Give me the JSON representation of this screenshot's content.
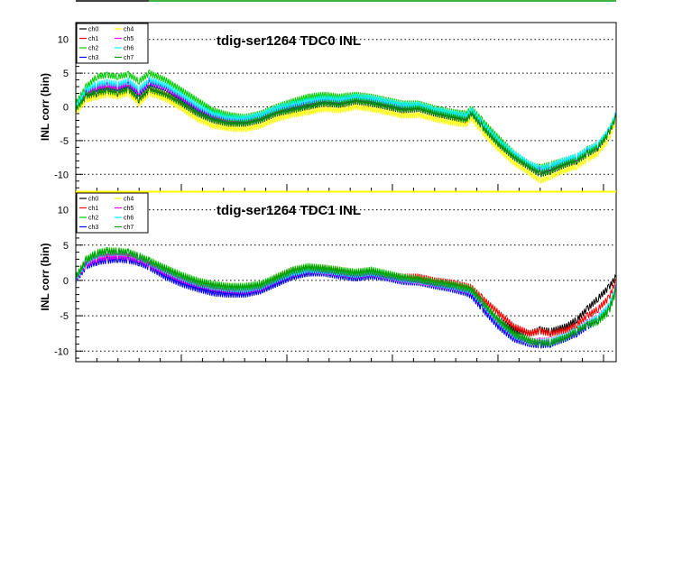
{
  "chart_data": [
    {
      "type": "line",
      "title": "tdig-ser1264 TDC0 INL",
      "xlabel": "",
      "ylabel": "INL corr (bin)",
      "ylim": [
        -12.5,
        12.5
      ],
      "yticks": [
        -10,
        -5,
        0,
        5,
        10
      ],
      "xlim": [
        0,
        1024
      ],
      "grid": true,
      "legend": "top-left",
      "legend_columns": [
        [
          "ch0",
          "ch1",
          "ch2",
          "ch3"
        ],
        [
          "ch4",
          "ch5",
          "ch6",
          "ch7"
        ]
      ],
      "x": [
        0,
        20,
        40,
        60,
        80,
        100,
        120,
        140,
        170,
        200,
        230,
        260,
        290,
        320,
        350,
        380,
        410,
        440,
        470,
        500,
        530,
        560,
        590,
        620,
        650,
        680,
        710,
        740,
        750,
        770,
        800,
        830,
        860,
        880,
        900,
        930,
        950,
        970,
        990,
        1010,
        1024
      ],
      "series": [
        {
          "name": "ch0",
          "color": "#000000",
          "values": [
            -0.5,
            1.5,
            2.0,
            2.2,
            2.0,
            2.5,
            1.0,
            2.5,
            1.8,
            0.5,
            -1.0,
            -2.0,
            -2.5,
            -2.5,
            -2.0,
            -1.0,
            -0.5,
            0.0,
            0.5,
            0.3,
            0.8,
            0.5,
            0.0,
            -0.5,
            -0.3,
            -1.0,
            -1.5,
            -2.0,
            -1.0,
            -3.0,
            -5.5,
            -7.5,
            -9.0,
            -10.0,
            -9.5,
            -8.5,
            -8.0,
            -7.0,
            -6.0,
            -4.0,
            -1.5
          ]
        },
        {
          "name": "ch1",
          "color": "#ff0000",
          "values": [
            -0.3,
            1.8,
            2.3,
            2.5,
            2.3,
            2.7,
            1.3,
            2.8,
            2.0,
            0.8,
            -0.8,
            -1.8,
            -2.3,
            -2.2,
            -1.7,
            -0.8,
            -0.2,
            0.3,
            0.8,
            0.6,
            1.0,
            0.8,
            0.2,
            -0.3,
            -0.1,
            -0.8,
            -1.3,
            -1.8,
            -0.8,
            -2.8,
            -5.3,
            -7.3,
            -8.8,
            -9.8,
            -9.3,
            -8.3,
            -7.8,
            -6.8,
            -5.8,
            -3.8,
            -1.3
          ]
        },
        {
          "name": "ch2",
          "color": "#00cc00",
          "values": [
            0.5,
            3.0,
            4.5,
            4.7,
            4.5,
            4.8,
            3.8,
            5.0,
            4.0,
            2.5,
            1.0,
            -0.5,
            -1.2,
            -1.5,
            -1.0,
            0.0,
            0.8,
            1.5,
            1.8,
            1.5,
            1.8,
            1.5,
            1.0,
            0.5,
            0.5,
            -0.2,
            -0.7,
            -1.0,
            -0.2,
            -2.0,
            -4.5,
            -6.8,
            -8.5,
            -9.0,
            -8.5,
            -7.8,
            -7.3,
            -6.3,
            -5.5,
            -3.5,
            -1.0
          ]
        },
        {
          "name": "ch3",
          "color": "#0000ff",
          "values": [
            -0.2,
            2.0,
            2.8,
            3.0,
            2.8,
            3.2,
            2.0,
            3.5,
            2.8,
            1.2,
            -0.3,
            -1.5,
            -2.0,
            -2.0,
            -1.5,
            -0.5,
            0.0,
            0.5,
            1.0,
            0.8,
            1.2,
            1.0,
            0.5,
            0.0,
            0.0,
            -0.7,
            -1.2,
            -1.6,
            -0.7,
            -2.7,
            -5.2,
            -7.2,
            -8.7,
            -9.5,
            -9.0,
            -8.0,
            -7.5,
            -6.6,
            -5.7,
            -3.7,
            -1.2
          ]
        },
        {
          "name": "ch4",
          "color": "#ffff00",
          "values": [
            -0.8,
            1.0,
            1.5,
            1.8,
            1.6,
            2.0,
            0.5,
            2.0,
            1.2,
            -0.2,
            -1.8,
            -2.8,
            -3.2,
            -3.3,
            -2.8,
            -1.8,
            -1.2,
            -0.8,
            -0.3,
            -0.5,
            0.0,
            -0.3,
            -0.8,
            -1.3,
            -1.2,
            -1.8,
            -2.3,
            -2.6,
            -1.7,
            -3.7,
            -6.2,
            -8.3,
            -9.8,
            -11.0,
            -10.3,
            -9.3,
            -8.8,
            -7.8,
            -6.8,
            -4.8,
            -2.0
          ]
        },
        {
          "name": "ch5",
          "color": "#ff00ff",
          "values": [
            -0.1,
            2.2,
            3.0,
            3.2,
            3.0,
            3.5,
            2.3,
            3.8,
            3.0,
            1.5,
            0.0,
            -1.2,
            -1.8,
            -1.8,
            -1.3,
            -0.3,
            0.3,
            0.8,
            1.2,
            1.0,
            1.4,
            1.2,
            0.7,
            0.2,
            0.2,
            -0.5,
            -1.0,
            -1.4,
            -0.5,
            -2.5,
            -5.0,
            -7.0,
            -8.5,
            -9.3,
            -8.8,
            -7.9,
            -7.4,
            -6.5,
            -5.6,
            -3.6,
            -1.1
          ]
        },
        {
          "name": "ch6",
          "color": "#00ffff",
          "values": [
            0.0,
            2.5,
            3.4,
            3.6,
            3.4,
            3.8,
            2.6,
            4.0,
            3.2,
            1.8,
            0.2,
            -1.0,
            -1.6,
            -1.7,
            -1.2,
            -0.2,
            0.4,
            0.9,
            1.3,
            1.1,
            1.5,
            1.3,
            0.8,
            0.3,
            0.3,
            -0.4,
            -0.9,
            -1.3,
            -0.4,
            -2.4,
            -4.9,
            -6.9,
            -8.4,
            -9.2,
            -8.7,
            -7.8,
            -7.3,
            -6.4,
            -5.5,
            -3.5,
            -1.0
          ]
        },
        {
          "name": "ch7",
          "color": "#009900",
          "values": [
            -0.4,
            1.7,
            2.2,
            2.4,
            2.2,
            2.6,
            1.2,
            2.7,
            1.9,
            0.6,
            -0.9,
            -1.9,
            -2.4,
            -2.4,
            -1.9,
            -0.9,
            -0.4,
            0.1,
            0.6,
            0.4,
            0.9,
            0.6,
            0.1,
            -0.4,
            -0.2,
            -0.9,
            -1.4,
            -1.9,
            -0.9,
            -2.9,
            -5.4,
            -7.4,
            -8.9,
            -9.9,
            -9.4,
            -8.4,
            -7.9,
            -6.9,
            -5.9,
            -3.9,
            -1.4
          ]
        }
      ]
    },
    {
      "type": "line",
      "title": "tdig-ser1264 TDC1 INL",
      "xlabel": "",
      "ylabel": "INL corr (bin)",
      "ylim": [
        -11.5,
        12.5
      ],
      "yticks": [
        -10,
        -5,
        0,
        5,
        10
      ],
      "xlim": [
        0,
        1024
      ],
      "grid": true,
      "legend": "top-left",
      "legend_columns": [
        [
          "ch0",
          "ch1",
          "ch2",
          "ch3"
        ],
        [
          "ch4",
          "ch5",
          "ch6",
          "ch7"
        ]
      ],
      "x": [
        0,
        20,
        40,
        60,
        80,
        100,
        120,
        140,
        170,
        200,
        230,
        260,
        290,
        320,
        350,
        380,
        410,
        440,
        470,
        500,
        530,
        560,
        590,
        620,
        650,
        680,
        710,
        740,
        750,
        770,
        800,
        830,
        860,
        880,
        900,
        930,
        950,
        970,
        990,
        1010,
        1024
      ],
      "series": [
        {
          "name": "ch0",
          "color": "#000000",
          "values": [
            0.0,
            2.0,
            2.8,
            3.0,
            3.2,
            3.0,
            2.8,
            2.0,
            1.0,
            0.0,
            -0.8,
            -1.2,
            -1.5,
            -1.8,
            -1.5,
            -0.5,
            0.5,
            1.0,
            1.2,
            0.8,
            0.5,
            0.8,
            0.5,
            0.0,
            -0.2,
            -0.6,
            -1.0,
            -1.5,
            -2.0,
            -3.5,
            -5.5,
            -7.0,
            -7.5,
            -7.0,
            -7.2,
            -6.5,
            -5.5,
            -4.0,
            -2.5,
            -1.0,
            0.5
          ]
        },
        {
          "name": "ch1",
          "color": "#ff0000",
          "values": [
            0.0,
            2.2,
            3.0,
            3.2,
            3.5,
            3.2,
            3.0,
            2.2,
            1.2,
            0.3,
            -0.5,
            -0.8,
            -1.0,
            -1.2,
            -0.8,
            0.5,
            1.5,
            1.8,
            1.8,
            1.5,
            1.0,
            1.2,
            0.8,
            0.5,
            0.5,
            0.0,
            -0.3,
            -0.8,
            -1.0,
            -2.5,
            -4.5,
            -6.5,
            -7.5,
            -7.2,
            -7.5,
            -7.0,
            -6.2,
            -5.0,
            -4.0,
            -2.5,
            0.0
          ]
        },
        {
          "name": "ch2",
          "color": "#00cc00",
          "values": [
            0.5,
            3.0,
            4.0,
            4.2,
            4.2,
            4.0,
            3.5,
            2.8,
            1.8,
            0.8,
            0.0,
            -0.5,
            -0.8,
            -0.8,
            -0.5,
            0.5,
            1.5,
            2.0,
            1.8,
            1.5,
            1.2,
            1.5,
            1.0,
            0.5,
            0.2,
            -0.2,
            -0.5,
            -1.0,
            -1.2,
            -3.0,
            -5.5,
            -7.5,
            -8.5,
            -9.0,
            -9.0,
            -8.2,
            -7.2,
            -6.5,
            -5.8,
            -4.5,
            -1.5
          ]
        },
        {
          "name": "ch3",
          "color": "#0000ff",
          "values": [
            0.0,
            2.0,
            2.6,
            2.8,
            3.0,
            2.8,
            2.5,
            1.8,
            0.5,
            -0.5,
            -1.2,
            -1.8,
            -2.0,
            -2.0,
            -1.5,
            -0.5,
            0.5,
            1.0,
            1.0,
            0.6,
            0.3,
            0.6,
            0.3,
            -0.2,
            -0.3,
            -0.8,
            -1.2,
            -1.8,
            -2.2,
            -4.0,
            -6.5,
            -8.3,
            -9.0,
            -9.2,
            -9.0,
            -8.2,
            -7.5,
            -6.5,
            -5.5,
            -4.0,
            -1.0
          ]
        },
        {
          "name": "ch4",
          "color": "#ffff00",
          "values": [
            0.3,
            2.5,
            3.5,
            3.8,
            4.0,
            3.8,
            3.3,
            2.5,
            1.5,
            0.5,
            -0.3,
            -0.8,
            -1.1,
            -1.2,
            -0.8,
            0.2,
            1.2,
            1.6,
            1.5,
            1.1,
            0.8,
            1.1,
            0.7,
            0.2,
            0.0,
            -0.4,
            -0.8,
            -1.3,
            -1.6,
            -3.3,
            -5.8,
            -7.8,
            -8.7,
            -8.8,
            -8.7,
            -7.9,
            -7.0,
            -6.2,
            -5.3,
            -3.8,
            -0.9
          ]
        },
        {
          "name": "ch5",
          "color": "#ff00ff",
          "values": [
            0.1,
            2.3,
            3.1,
            3.3,
            3.5,
            3.3,
            3.0,
            2.2,
            1.1,
            0.1,
            -0.6,
            -1.1,
            -1.4,
            -1.5,
            -1.1,
            0.0,
            0.9,
            1.4,
            1.3,
            1.0,
            0.7,
            1.0,
            0.6,
            0.1,
            -0.1,
            -0.5,
            -0.9,
            -1.4,
            -1.7,
            -3.4,
            -5.9,
            -7.9,
            -8.6,
            -8.6,
            -8.5,
            -7.8,
            -6.9,
            -6.0,
            -5.1,
            -3.7,
            -0.8
          ]
        },
        {
          "name": "ch6",
          "color": "#00ffff",
          "values": [
            0.2,
            2.6,
            3.6,
            3.9,
            4.0,
            3.8,
            3.3,
            2.5,
            1.4,
            0.4,
            -0.4,
            -0.9,
            -1.2,
            -1.3,
            -0.9,
            0.1,
            1.0,
            1.5,
            1.4,
            1.1,
            0.8,
            1.1,
            0.7,
            0.2,
            0.0,
            -0.4,
            -0.8,
            -1.3,
            -1.6,
            -3.3,
            -5.8,
            -7.8,
            -8.6,
            -8.8,
            -8.6,
            -7.8,
            -6.9,
            -6.1,
            -5.2,
            -3.7,
            -0.9
          ]
        },
        {
          "name": "ch7",
          "color": "#009900",
          "values": [
            0.4,
            2.8,
            3.8,
            4.0,
            4.1,
            3.9,
            3.4,
            2.6,
            1.6,
            0.6,
            -0.2,
            -0.7,
            -1.0,
            -1.0,
            -0.7,
            0.3,
            1.3,
            1.8,
            1.6,
            1.3,
            1.0,
            1.3,
            0.8,
            0.4,
            0.1,
            -0.3,
            -0.6,
            -1.1,
            -1.4,
            -3.1,
            -5.6,
            -7.6,
            -8.5,
            -8.9,
            -8.8,
            -8.0,
            -7.1,
            -6.3,
            -5.6,
            -4.2,
            -1.2
          ]
        }
      ]
    }
  ]
}
